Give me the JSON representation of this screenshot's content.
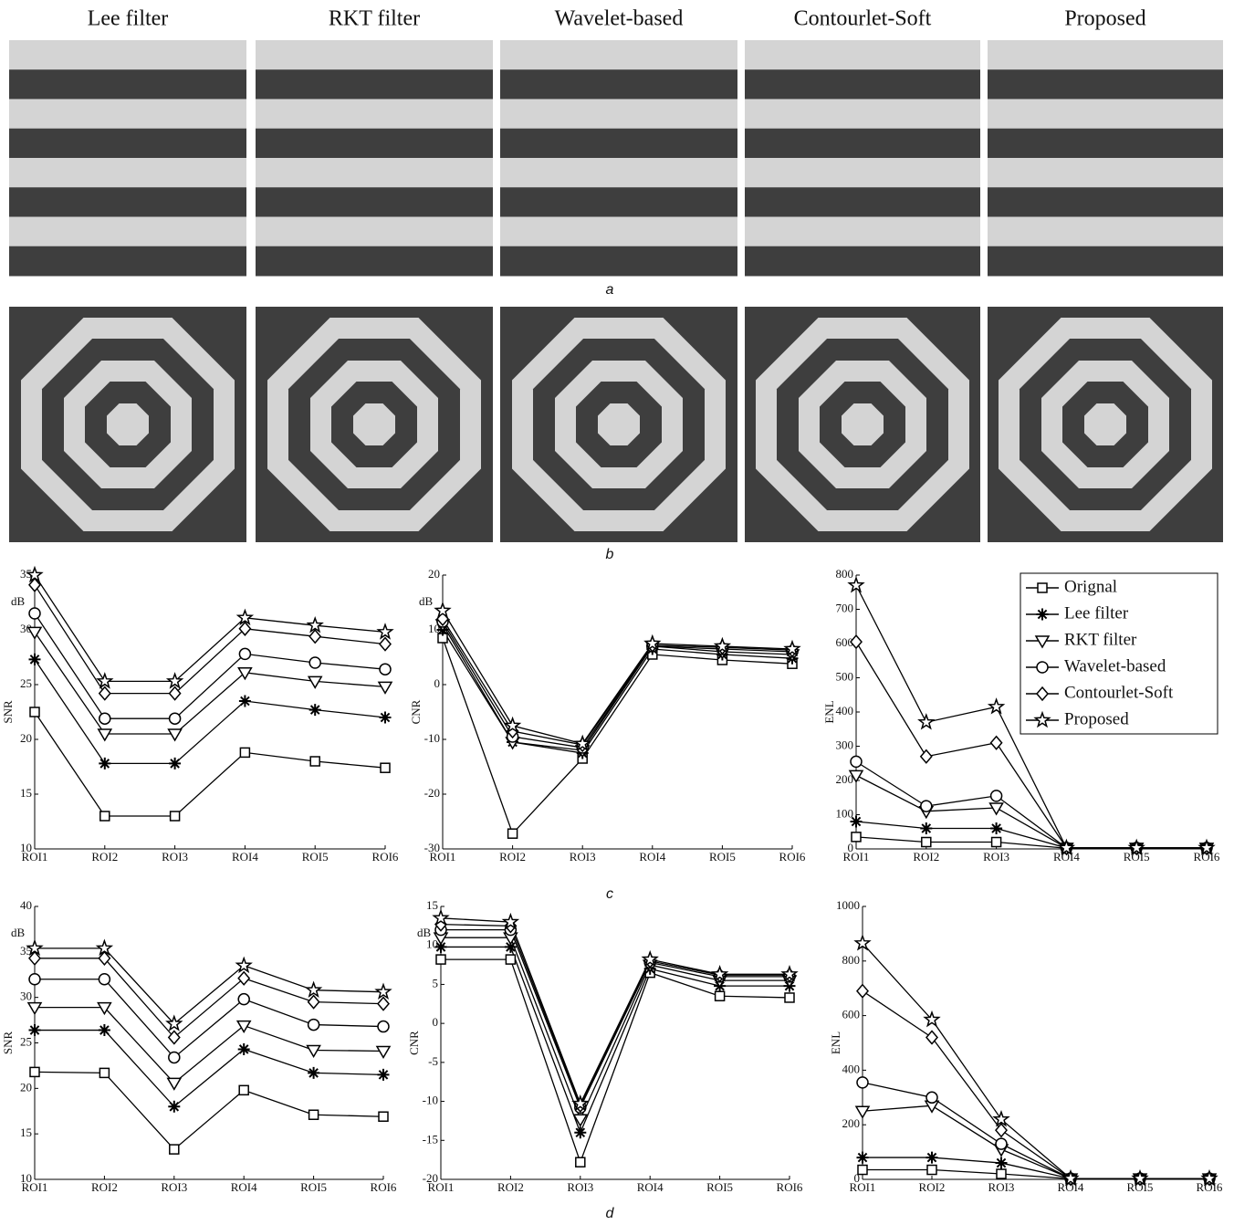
{
  "figure": {
    "column_titles": [
      "Lee filter",
      "RKT filter",
      "Wavelet-based",
      "Contourlet-Soft",
      "Proposed"
    ],
    "panel_labels": [
      "a",
      "b",
      "c",
      "d"
    ]
  },
  "chart_data": [
    {
      "type": "line",
      "ylabel": "SNR",
      "annotation": "dB",
      "categories": [
        "ROI1",
        "ROI2",
        "ROI3",
        "ROI4",
        "ROI5",
        "ROI6"
      ],
      "ylim": [
        10,
        35
      ],
      "yticks": [
        10,
        15,
        20,
        25,
        30,
        35
      ],
      "series": [
        {
          "marker": "square",
          "color": "#000",
          "values": [
            22.5,
            13,
            13,
            18.8,
            18,
            17.4
          ]
        },
        {
          "marker": "asterisk",
          "color": "#000",
          "values": [
            27.3,
            17.8,
            17.8,
            23.5,
            22.7,
            22
          ]
        },
        {
          "marker": "triangle-down",
          "color": "#000",
          "values": [
            29.8,
            20.5,
            20.5,
            26.1,
            25.3,
            24.8
          ]
        },
        {
          "marker": "circle",
          "color": "#000",
          "values": [
            31.5,
            21.9,
            21.9,
            27.8,
            27,
            26.4
          ]
        },
        {
          "marker": "diamond",
          "color": "#000",
          "values": [
            34.1,
            24.2,
            24.2,
            30.1,
            29.4,
            28.7
          ]
        },
        {
          "marker": "star",
          "color": "#000",
          "values": [
            35,
            25.3,
            25.3,
            31.1,
            30.4,
            29.8
          ]
        }
      ]
    },
    {
      "type": "line",
      "ylabel": "CNR",
      "annotation": "dB",
      "categories": [
        "ROI1",
        "ROI2",
        "ROI3",
        "ROI4",
        "ROI5",
        "ROI6"
      ],
      "ylim": [
        -30,
        20
      ],
      "yticks": [
        -30,
        -20,
        -10,
        0,
        10,
        20
      ],
      "series": [
        {
          "marker": "square",
          "color": "#000",
          "values": [
            8.5,
            -27.2,
            -13.5,
            5.5,
            4.5,
            3.8
          ]
        },
        {
          "marker": "asterisk",
          "color": "#000",
          "values": [
            10,
            -10.5,
            -12.5,
            6.5,
            5.5,
            4.8
          ]
        },
        {
          "marker": "triangle-down",
          "color": "#000",
          "values": [
            11,
            -10.5,
            -12,
            7,
            6,
            5.5
          ]
        },
        {
          "marker": "circle",
          "color": "#000",
          "values": [
            11.5,
            -9.5,
            -11.5,
            7,
            6.5,
            6
          ]
        },
        {
          "marker": "diamond",
          "color": "#000",
          "values": [
            12,
            -8.5,
            -11,
            7.2,
            6.8,
            6.3
          ]
        },
        {
          "marker": "star",
          "color": "#000",
          "values": [
            13.5,
            -7.5,
            -10.8,
            7.5,
            7,
            6.5
          ]
        }
      ]
    },
    {
      "type": "line",
      "ylabel": "ENL",
      "categories": [
        "ROI1",
        "ROI2",
        "ROI3",
        "ROI4",
        "ROI5",
        "ROI6"
      ],
      "ylim": [
        0,
        800
      ],
      "yticks": [
        0,
        100,
        200,
        300,
        400,
        500,
        600,
        700,
        800
      ],
      "legend": "upper right",
      "series": [
        {
          "name": "Orignal",
          "marker": "square",
          "color": "#000",
          "values": [
            35,
            20,
            20,
            2,
            2,
            2
          ]
        },
        {
          "name": "Lee filter",
          "marker": "asterisk",
          "color": "#000",
          "values": [
            80,
            60,
            60,
            3,
            3,
            3
          ]
        },
        {
          "name": "RKT filter",
          "marker": "triangle-down",
          "color": "#000",
          "values": [
            215,
            110,
            120,
            3,
            3,
            3
          ]
        },
        {
          "name": "Wavelet-based",
          "marker": "circle",
          "color": "#000",
          "values": [
            255,
            125,
            155,
            3,
            3,
            3
          ]
        },
        {
          "name": "Contourlet-Soft",
          "marker": "diamond",
          "color": "#000",
          "values": [
            605,
            270,
            310,
            3,
            3,
            3
          ]
        },
        {
          "name": "Proposed",
          "marker": "star",
          "color": "#000",
          "values": [
            770,
            370,
            415,
            3,
            3,
            3
          ]
        }
      ]
    },
    {
      "type": "line",
      "ylabel": "SNR",
      "annotation": "dB",
      "categories": [
        "ROI1",
        "ROI2",
        "ROI3",
        "ROI4",
        "ROI5",
        "ROI6"
      ],
      "ylim": [
        10,
        40
      ],
      "yticks": [
        10,
        15,
        20,
        25,
        30,
        35,
        40
      ],
      "series": [
        {
          "marker": "square",
          "color": "#000",
          "values": [
            21.8,
            21.7,
            13.3,
            19.8,
            17.1,
            16.9
          ]
        },
        {
          "marker": "asterisk",
          "color": "#000",
          "values": [
            26.4,
            26.4,
            18,
            24.3,
            21.7,
            21.5
          ]
        },
        {
          "marker": "triangle-down",
          "color": "#000",
          "values": [
            28.9,
            28.9,
            20.6,
            26.9,
            24.2,
            24.1
          ]
        },
        {
          "marker": "circle",
          "color": "#000",
          "values": [
            32,
            32,
            23.4,
            29.8,
            27,
            26.8
          ]
        },
        {
          "marker": "diamond",
          "color": "#000",
          "values": [
            34.3,
            34.3,
            25.6,
            32.1,
            29.5,
            29.3
          ]
        },
        {
          "marker": "star",
          "color": "#000",
          "values": [
            35.4,
            35.4,
            27.1,
            33.5,
            30.8,
            30.6
          ]
        }
      ]
    },
    {
      "type": "line",
      "ylabel": "CNR",
      "annotation": "dB",
      "categories": [
        "ROI1",
        "ROI2",
        "ROI3",
        "ROI4",
        "ROI5",
        "ROI6"
      ],
      "ylim": [
        -20,
        15
      ],
      "yticks": [
        -20,
        -15,
        -10,
        -5,
        0,
        5,
        10,
        15
      ],
      "series": [
        {
          "marker": "square",
          "color": "#000",
          "values": [
            8.2,
            8.2,
            -17.8,
            6.5,
            3.5,
            3.3
          ]
        },
        {
          "marker": "asterisk",
          "color": "#000",
          "values": [
            9.8,
            9.8,
            -14,
            7,
            4.8,
            4.8
          ]
        },
        {
          "marker": "triangle-down",
          "color": "#000",
          "values": [
            11,
            11,
            -12.3,
            7.5,
            5.5,
            5.5
          ]
        },
        {
          "marker": "circle",
          "color": "#000",
          "values": [
            12,
            12,
            -10.8,
            7.8,
            6,
            6
          ]
        },
        {
          "marker": "diamond",
          "color": "#000",
          "values": [
            12.7,
            12.5,
            -10.5,
            8,
            6.2,
            6.2
          ]
        },
        {
          "marker": "star",
          "color": "#000",
          "values": [
            13.5,
            13,
            -10.3,
            8.2,
            6.3,
            6.3
          ]
        }
      ]
    },
    {
      "type": "line",
      "ylabel": "ENL",
      "categories": [
        "ROI1",
        "ROI2",
        "ROI3",
        "ROI4",
        "ROI5",
        "ROI6"
      ],
      "ylim": [
        0,
        1000
      ],
      "yticks": [
        0,
        200,
        400,
        600,
        800,
        1000
      ],
      "series": [
        {
          "marker": "square",
          "color": "#000",
          "values": [
            35,
            35,
            20,
            2,
            2,
            2
          ]
        },
        {
          "marker": "asterisk",
          "color": "#000",
          "values": [
            80,
            80,
            60,
            3,
            3,
            3
          ]
        },
        {
          "marker": "triangle-down",
          "color": "#000",
          "values": [
            250,
            270,
            110,
            3,
            3,
            3
          ]
        },
        {
          "marker": "circle",
          "color": "#000",
          "values": [
            355,
            300,
            130,
            3,
            3,
            3
          ]
        },
        {
          "marker": "diamond",
          "color": "#000",
          "values": [
            690,
            520,
            180,
            3,
            3,
            3
          ]
        },
        {
          "marker": "star",
          "color": "#000",
          "values": [
            865,
            585,
            220,
            3,
            3,
            3
          ]
        }
      ]
    }
  ]
}
